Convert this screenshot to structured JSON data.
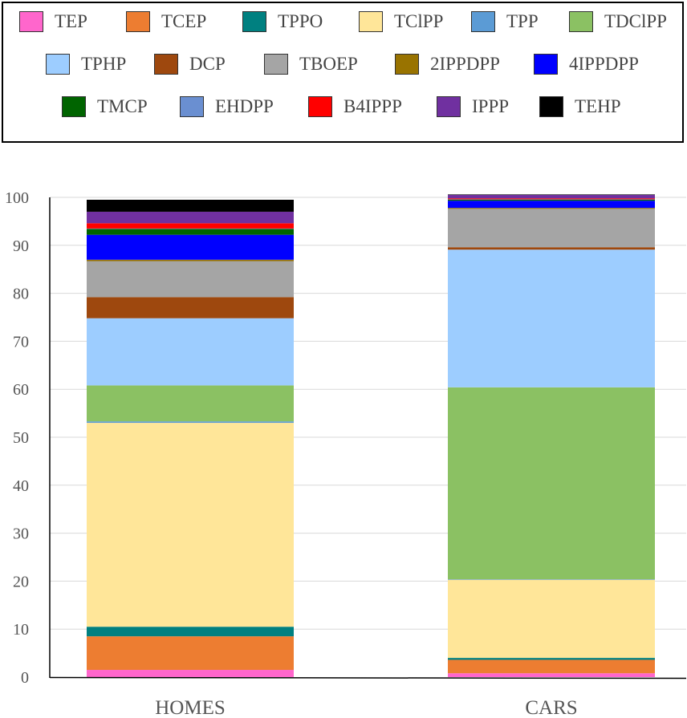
{
  "chart_data": {
    "type": "bar",
    "stacked": true,
    "categories": [
      "HOMES",
      "CARS"
    ],
    "ylim": [
      0,
      100
    ],
    "yticks": [
      0,
      10,
      20,
      30,
      40,
      50,
      60,
      70,
      80,
      90,
      100
    ],
    "grid": true,
    "legend_position": "top",
    "series": [
      {
        "name": "TEP",
        "color": "#ff66cc",
        "values": [
          1.5,
          0.8
        ]
      },
      {
        "name": "TCEP",
        "color": "#ed7d31",
        "values": [
          7.0,
          2.8
        ]
      },
      {
        "name": "TPPO",
        "color": "#008080",
        "values": [
          2.0,
          0.4
        ]
      },
      {
        "name": "TClPP",
        "color": "#ffe699",
        "values": [
          42.5,
          16.3
        ]
      },
      {
        "name": "TPP",
        "color": "#5b9bd5",
        "values": [
          0.3,
          0.1
        ]
      },
      {
        "name": "TDClPP",
        "color": "#8bc163",
        "values": [
          7.5,
          40.0
        ]
      },
      {
        "name": "TPHP",
        "color": "#9dcdff",
        "values": [
          14.0,
          28.7
        ]
      },
      {
        "name": "DCP",
        "color": "#9e480e",
        "values": [
          4.4,
          0.5
        ]
      },
      {
        "name": "TBOEP",
        "color": "#a5a5a5",
        "values": [
          7.5,
          8.0
        ]
      },
      {
        "name": "2IPPDPP",
        "color": "#997300",
        "values": [
          0.3,
          0.2
        ]
      },
      {
        "name": "4IPPDPP",
        "color": "#0000ff",
        "values": [
          5.2,
          1.5
        ]
      },
      {
        "name": "TMCP",
        "color": "#006400",
        "values": [
          1.2,
          0.2
        ]
      },
      {
        "name": "EHDPP",
        "color": "#6a8fd1",
        "values": [
          0.1,
          0.1
        ]
      },
      {
        "name": "B4IPPP",
        "color": "#ff0000",
        "values": [
          1.1,
          0.2
        ]
      },
      {
        "name": "IPPP",
        "color": "#7030a0",
        "values": [
          2.4,
          0.7
        ]
      },
      {
        "name": "TEHP",
        "color": "#000000",
        "values": [
          2.5,
          0.1
        ]
      }
    ]
  }
}
